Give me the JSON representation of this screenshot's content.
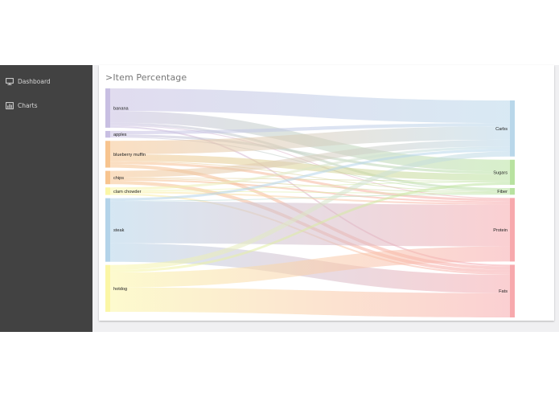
{
  "sidebar": {
    "items": [
      {
        "label": "Dashboard",
        "icon": "monitor-icon"
      },
      {
        "label": "Charts",
        "icon": "bar-chart-icon"
      }
    ]
  },
  "card": {
    "title": ">Item Percentage"
  },
  "chart_data": {
    "type": "sankey",
    "sources": [
      {
        "name": "banana",
        "color": "#c8bfe2"
      },
      {
        "name": "apples",
        "color": "#c8bfe2"
      },
      {
        "name": "blueberry muffin",
        "color": "#f7c48f"
      },
      {
        "name": "chips",
        "color": "#f7c48f"
      },
      {
        "name": "clam chowder",
        "color": "#fbf6a6"
      },
      {
        "name": "steak",
        "color": "#b3d3e9"
      },
      {
        "name": "hotdog",
        "color": "#fbf6a6"
      }
    ],
    "targets": [
      {
        "name": "Carbs",
        "color": "#b9d7ea"
      },
      {
        "name": "Sugars",
        "color": "#b8e2a0"
      },
      {
        "name": "Fiber",
        "color": "#b8e2a0"
      },
      {
        "name": "Protein",
        "color": "#f7a9ad"
      },
      {
        "name": "Fats",
        "color": "#f7a9ad"
      }
    ],
    "links": [
      {
        "source": "banana",
        "target": "Carbs",
        "value": 27
      },
      {
        "source": "banana",
        "target": "Sugars",
        "value": 14
      },
      {
        "source": "banana",
        "target": "Fiber",
        "value": 3
      },
      {
        "source": "banana",
        "target": "Protein",
        "value": 1
      },
      {
        "source": "banana",
        "target": "Fats",
        "value": 2
      },
      {
        "source": "apples",
        "target": "Carbs",
        "value": 4
      },
      {
        "source": "apples",
        "target": "Sugars",
        "value": 3
      },
      {
        "source": "apples",
        "target": "Fiber",
        "value": 1
      },
      {
        "source": "blueberry muffin",
        "target": "Carbs",
        "value": 16
      },
      {
        "source": "blueberry muffin",
        "target": "Sugars",
        "value": 8
      },
      {
        "source": "blueberry muffin",
        "target": "Fiber",
        "value": 1
      },
      {
        "source": "blueberry muffin",
        "target": "Protein",
        "value": 3
      },
      {
        "source": "blueberry muffin",
        "target": "Fats",
        "value": 4
      },
      {
        "source": "chips",
        "target": "Carbs",
        "value": 8
      },
      {
        "source": "chips",
        "target": "Sugars",
        "value": 1
      },
      {
        "source": "chips",
        "target": "Fiber",
        "value": 1
      },
      {
        "source": "chips",
        "target": "Protein",
        "value": 2
      },
      {
        "source": "chips",
        "target": "Fats",
        "value": 4
      },
      {
        "source": "clam chowder",
        "target": "Carbs",
        "value": 3
      },
      {
        "source": "clam chowder",
        "target": "Sugars",
        "value": 1
      },
      {
        "source": "clam chowder",
        "target": "Fiber",
        "value": 1
      },
      {
        "source": "clam chowder",
        "target": "Protein",
        "value": 2
      },
      {
        "source": "clam chowder",
        "target": "Fats",
        "value": 2
      },
      {
        "source": "steak",
        "target": "Carbs",
        "value": 3
      },
      {
        "source": "steak",
        "target": "Fiber",
        "value": 1
      },
      {
        "source": "steak",
        "target": "Protein",
        "value": 50
      },
      {
        "source": "steak",
        "target": "Fats",
        "value": 22
      },
      {
        "source": "hotdog",
        "target": "Carbs",
        "value": 6
      },
      {
        "source": "hotdog",
        "target": "Sugars",
        "value": 3
      },
      {
        "source": "hotdog",
        "target": "Protein",
        "value": 18
      },
      {
        "source": "hotdog",
        "target": "Fats",
        "value": 29
      }
    ]
  }
}
